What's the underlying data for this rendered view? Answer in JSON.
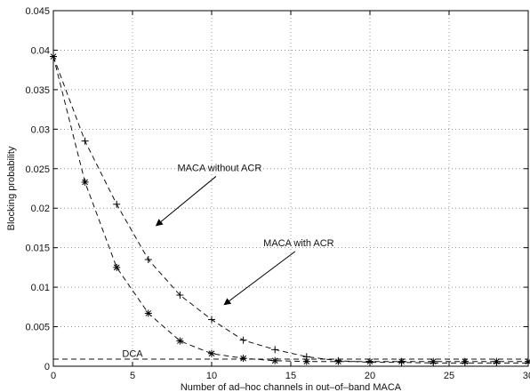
{
  "chart_data": {
    "type": "line",
    "title": "",
    "xlabel": "Number of ad–hoc channels in out–of–band MACA",
    "ylabel": "Blocking probability",
    "xlim": [
      0,
      30
    ],
    "ylim": [
      0,
      0.045
    ],
    "grid": true,
    "x_ticks": [
      0,
      5,
      10,
      15,
      20,
      25,
      30
    ],
    "x_tick_labels": [
      "0",
      "5",
      "10",
      "15",
      "20",
      "25",
      "30"
    ],
    "y_ticks": [
      0,
      0.005,
      0.01,
      0.015,
      0.02,
      0.025,
      0.03,
      0.035,
      0.04,
      0.045
    ],
    "y_tick_labels": [
      "0",
      "0.005",
      "0.01",
      "0.015",
      "0.02",
      "0.025",
      "0.03",
      "0.035",
      "0.04",
      "0.045"
    ],
    "series": [
      {
        "name": "MACA without ACR",
        "marker": "plus",
        "line_style": "dashed",
        "x": [
          0,
          2,
          4,
          6,
          8,
          10,
          12,
          14,
          16,
          18,
          20,
          22,
          24,
          26,
          28,
          30
        ],
        "y": [
          0.0392,
          0.0285,
          0.0205,
          0.0135,
          0.009,
          0.0059,
          0.0033,
          0.0021,
          0.0012,
          0.0007,
          0.0005,
          0.0005,
          0.0004,
          0.0004,
          0.0004,
          0.0004
        ]
      },
      {
        "name": "MACA with ACR",
        "marker": "star",
        "line_style": "dashed",
        "x": [
          0,
          2,
          4,
          6,
          8,
          10,
          12,
          14,
          16,
          18,
          20,
          22,
          24,
          26,
          28,
          30
        ],
        "y": [
          0.0392,
          0.0233,
          0.0125,
          0.0067,
          0.0032,
          0.0016,
          0.001,
          0.0007,
          0.0006,
          0.0006,
          0.0006,
          0.0006,
          0.0006,
          0.0006,
          0.0006,
          0.0006
        ]
      },
      {
        "name": "DCA",
        "marker": "none",
        "line_style": "dashed",
        "x": [
          0,
          30
        ],
        "y": [
          0.0009,
          0.0009
        ]
      }
    ],
    "annotations": [
      {
        "text": "MACA without ACR",
        "x": 10.5,
        "y": 0.0247,
        "arrow_to": [
          6.5,
          0.0178
        ]
      },
      {
        "text": "MACA with ACR",
        "x": 15.5,
        "y": 0.0152,
        "arrow_to": [
          10.8,
          0.0078
        ]
      },
      {
        "text": "DCA",
        "x": 5.0,
        "y": 0.0012
      }
    ]
  }
}
